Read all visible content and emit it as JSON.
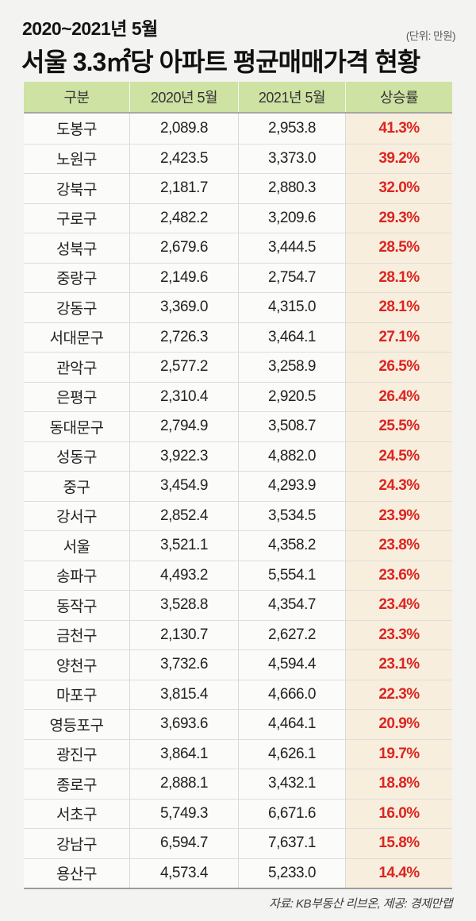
{
  "header": {
    "period": "2020~2021년 5월",
    "unit_note": "(단위: 만원)",
    "title": "서울 3.3㎡당 아파트 평균매매가격 현황"
  },
  "footer": {
    "source": "자료: KB부동산 리브온, 제공: 경제만랩"
  },
  "colors": {
    "page_background": "#f3f3f1",
    "header_row_background": "#cee2a3",
    "rate_column_background": "#f8eedd",
    "rate_text": "#dd2420",
    "body_text": "#222222"
  },
  "chart_data": {
    "type": "table",
    "title": "서울 3.3㎡당 아파트 평균매매가격 현황",
    "subtitle": "2020~2021년 5월",
    "unit": "만원",
    "columns": [
      "구분",
      "2020년 5월",
      "2021년 5월",
      "상승률"
    ],
    "rows": [
      [
        "도봉구",
        2089.8,
        2953.8,
        41.3
      ],
      [
        "노원구",
        2423.5,
        3373.0,
        39.2
      ],
      [
        "강북구",
        2181.7,
        2880.3,
        32.0
      ],
      [
        "구로구",
        2482.2,
        3209.6,
        29.3
      ],
      [
        "성북구",
        2679.6,
        3444.5,
        28.5
      ],
      [
        "중랑구",
        2149.6,
        2754.7,
        28.1
      ],
      [
        "강동구",
        3369.0,
        4315.0,
        28.1
      ],
      [
        "서대문구",
        2726.3,
        3464.1,
        27.1
      ],
      [
        "관악구",
        2577.2,
        3258.9,
        26.5
      ],
      [
        "은평구",
        2310.4,
        2920.5,
        26.4
      ],
      [
        "동대문구",
        2794.9,
        3508.7,
        25.5
      ],
      [
        "성동구",
        3922.3,
        4882.0,
        24.5
      ],
      [
        "중구",
        3454.9,
        4293.9,
        24.3
      ],
      [
        "강서구",
        2852.4,
        3534.5,
        23.9
      ],
      [
        "서울",
        3521.1,
        4358.2,
        23.8
      ],
      [
        "송파구",
        4493.2,
        5554.1,
        23.6
      ],
      [
        "동작구",
        3528.8,
        4354.7,
        23.4
      ],
      [
        "금천구",
        2130.7,
        2627.2,
        23.3
      ],
      [
        "양천구",
        3732.6,
        4594.4,
        23.1
      ],
      [
        "마포구",
        3815.4,
        4666.0,
        22.3
      ],
      [
        "영등포구",
        3693.6,
        4464.1,
        20.9
      ],
      [
        "광진구",
        3864.1,
        4626.1,
        19.7
      ],
      [
        "종로구",
        2888.1,
        3432.1,
        18.8
      ],
      [
        "서초구",
        5749.3,
        6671.6,
        16.0
      ],
      [
        "강남구",
        6594.7,
        7637.1,
        15.8
      ],
      [
        "용산구",
        4573.4,
        5233.0,
        14.4
      ]
    ]
  }
}
